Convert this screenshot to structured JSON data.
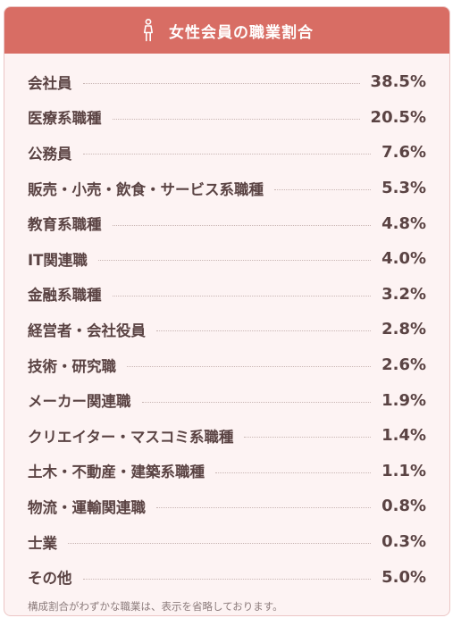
{
  "header": {
    "icon": "woman-icon",
    "title": "女性会員の職業割合"
  },
  "occupations": [
    {
      "label": "会社員",
      "value": "38.5%"
    },
    {
      "label": "医療系職種",
      "value": "20.5%"
    },
    {
      "label": "公務員",
      "value": "7.6%"
    },
    {
      "label": "販売・小売・飲食・サービス系職種",
      "value": "5.3%"
    },
    {
      "label": "教育系職種",
      "value": "4.8%"
    },
    {
      "label": "IT関連職",
      "value": "4.0%"
    },
    {
      "label": "金融系職種",
      "value": "3.2%"
    },
    {
      "label": "経営者・会社役員",
      "value": "2.8%"
    },
    {
      "label": "技術・研究職",
      "value": "2.6%"
    },
    {
      "label": "メーカー関連職",
      "value": "1.9%"
    },
    {
      "label": "クリエイター・マスコミ系職種",
      "value": "1.4%"
    },
    {
      "label": "土木・不動産・建築系職種",
      "value": "1.1%"
    },
    {
      "label": "物流・運輸関連職",
      "value": "0.8%"
    },
    {
      "label": "士業",
      "value": "0.3%"
    },
    {
      "label": "その他",
      "value": "5.0%"
    }
  ],
  "footnote": "構成割合がわずかな職業は、表示を省略しております。",
  "colors": {
    "header_bg": "#d86d64",
    "card_bg": "#fdf3f3",
    "text": "#5a4343"
  }
}
